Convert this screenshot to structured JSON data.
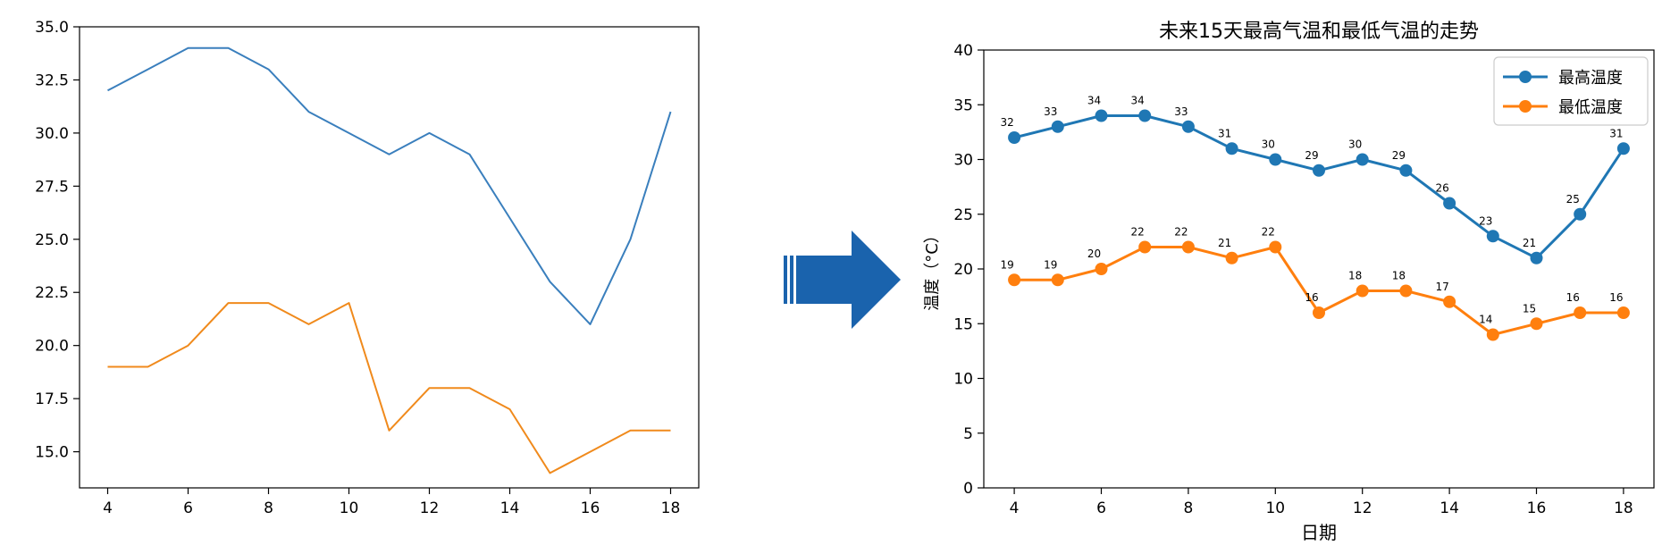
{
  "colors": {
    "high": "#3a7fbd",
    "low": "#f08a1c",
    "high_marker": "#1f77b4",
    "low_marker": "#ff7f0e",
    "arrow": "#1a63ad",
    "axis": "#000000"
  },
  "arrow": {
    "icon": "right-arrow-icon"
  },
  "chart_data": [
    {
      "type": "line",
      "title": "",
      "xlabel": "",
      "ylabel": "",
      "x": [
        4,
        5,
        6,
        7,
        8,
        9,
        10,
        11,
        12,
        13,
        14,
        15,
        16,
        17,
        18
      ],
      "series": [
        {
          "values": [
            32,
            33,
            34,
            34,
            33,
            31,
            30,
            29,
            30,
            29,
            26,
            23,
            21,
            25,
            31
          ]
        },
        {
          "values": [
            19,
            19,
            20,
            22,
            22,
            21,
            22,
            16,
            18,
            18,
            17,
            14,
            15,
            16,
            16
          ]
        }
      ],
      "xlim": [
        3.3,
        18.7
      ],
      "ylim": [
        13.3,
        35.0
      ],
      "xticks": [
        4,
        6,
        8,
        10,
        12,
        14,
        16,
        18
      ],
      "xtick_labels": [
        "4",
        "6",
        "8",
        "10",
        "12",
        "14",
        "16",
        "18"
      ],
      "yticks": [
        15.0,
        17.5,
        20.0,
        22.5,
        25.0,
        27.5,
        30.0,
        32.5,
        35.0
      ],
      "ytick_labels": [
        "15.0",
        "17.5",
        "20.0",
        "22.5",
        "25.0",
        "27.5",
        "30.0",
        "32.5",
        "35.0"
      ],
      "grid": false,
      "legend": "none"
    },
    {
      "type": "line",
      "title": "未来15天最高气温和最低气温的走势",
      "xlabel": "日期",
      "ylabel": "温度（°C）",
      "x": [
        4,
        5,
        6,
        7,
        8,
        9,
        10,
        11,
        12,
        13,
        14,
        15,
        16,
        17,
        18
      ],
      "series": [
        {
          "name": "最高温度",
          "values": [
            32,
            33,
            34,
            34,
            33,
            31,
            30,
            29,
            30,
            29,
            26,
            23,
            21,
            25,
            31
          ]
        },
        {
          "name": "最低温度",
          "values": [
            19,
            19,
            20,
            22,
            22,
            21,
            22,
            16,
            18,
            18,
            17,
            14,
            15,
            16,
            16
          ]
        }
      ],
      "xlim": [
        3.3,
        18.7
      ],
      "ylim": [
        0,
        40
      ],
      "xticks": [
        4,
        6,
        8,
        10,
        12,
        14,
        16,
        18
      ],
      "xtick_labels": [
        "4",
        "6",
        "8",
        "10",
        "12",
        "14",
        "16",
        "18"
      ],
      "yticks": [
        0,
        5,
        10,
        15,
        20,
        25,
        30,
        35,
        40
      ],
      "ytick_labels": [
        "0",
        "5",
        "10",
        "15",
        "20",
        "25",
        "30",
        "35",
        "40"
      ],
      "data_labels": true,
      "markers": true,
      "grid": false,
      "legend": "top-right"
    }
  ]
}
